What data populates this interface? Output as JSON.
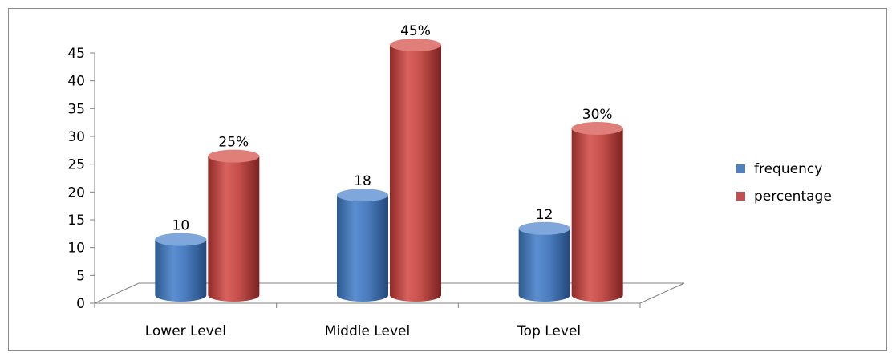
{
  "chart_data": {
    "type": "bar",
    "categories": [
      "Lower Level",
      "Middle Level",
      "Top Level"
    ],
    "series": [
      {
        "name": "frequency",
        "values": [
          10,
          18,
          12
        ],
        "labels": [
          "10",
          "18",
          "12"
        ],
        "color": "#4F81BD"
      },
      {
        "name": "percentage",
        "values": [
          25,
          45,
          30
        ],
        "labels": [
          "25%",
          "45%",
          "30%"
        ],
        "color": "#C0504D"
      }
    ],
    "ylim": [
      0,
      45
    ],
    "yticks": [
      "0",
      "5",
      "10",
      "15",
      "20",
      "25",
      "30",
      "35",
      "40",
      "45"
    ],
    "legend_position": "right",
    "grid": false,
    "style": "3d-cylinder"
  }
}
